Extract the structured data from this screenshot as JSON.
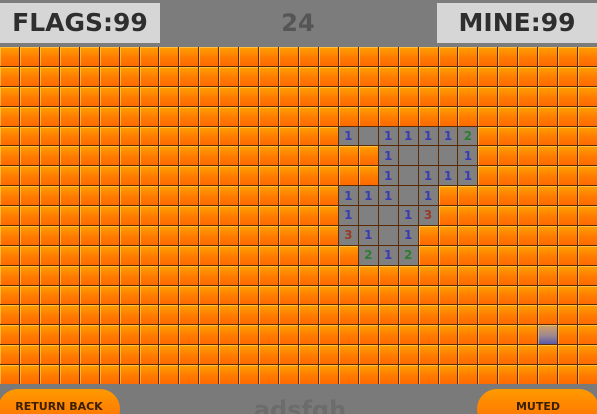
{
  "hud": {
    "flags_label": "FLAGS:99",
    "timer": "24",
    "mine_label": "MINE:99"
  },
  "board": {
    "columns": 30,
    "rows": 17,
    "opened": [
      {
        "r": 4,
        "c": 17,
        "n": "1"
      },
      {
        "r": 4,
        "c": 18,
        "n": ""
      },
      {
        "r": 4,
        "c": 19,
        "n": "1"
      },
      {
        "r": 4,
        "c": 20,
        "n": "1"
      },
      {
        "r": 4,
        "c": 21,
        "n": "1"
      },
      {
        "r": 4,
        "c": 22,
        "n": "1"
      },
      {
        "r": 4,
        "c": 23,
        "n": "2"
      },
      {
        "r": 5,
        "c": 19,
        "n": "1"
      },
      {
        "r": 5,
        "c": 20,
        "n": ""
      },
      {
        "r": 5,
        "c": 21,
        "n": ""
      },
      {
        "r": 5,
        "c": 22,
        "n": ""
      },
      {
        "r": 5,
        "c": 23,
        "n": "1"
      },
      {
        "r": 6,
        "c": 19,
        "n": "1"
      },
      {
        "r": 6,
        "c": 20,
        "n": ""
      },
      {
        "r": 6,
        "c": 21,
        "n": "1"
      },
      {
        "r": 6,
        "c": 22,
        "n": "1"
      },
      {
        "r": 6,
        "c": 23,
        "n": "1"
      },
      {
        "r": 7,
        "c": 17,
        "n": "1"
      },
      {
        "r": 7,
        "c": 18,
        "n": "1"
      },
      {
        "r": 7,
        "c": 19,
        "n": "1"
      },
      {
        "r": 7,
        "c": 20,
        "n": ""
      },
      {
        "r": 7,
        "c": 21,
        "n": "1"
      },
      {
        "r": 8,
        "c": 17,
        "n": "1"
      },
      {
        "r": 8,
        "c": 18,
        "n": ""
      },
      {
        "r": 8,
        "c": 19,
        "n": ""
      },
      {
        "r": 8,
        "c": 20,
        "n": "1"
      },
      {
        "r": 8,
        "c": 21,
        "n": "3"
      },
      {
        "r": 9,
        "c": 17,
        "n": "3"
      },
      {
        "r": 9,
        "c": 18,
        "n": "1"
      },
      {
        "r": 9,
        "c": 19,
        "n": ""
      },
      {
        "r": 9,
        "c": 20,
        "n": "1"
      },
      {
        "r": 10,
        "c": 18,
        "n": "2"
      },
      {
        "r": 10,
        "c": 19,
        "n": "1"
      },
      {
        "r": 10,
        "c": 20,
        "n": "2"
      }
    ],
    "cursor": {
      "r": 14,
      "c": 27
    }
  },
  "footer": {
    "return_label": "RETURN BACK",
    "player_name": "adsfgh",
    "muted_label": "MUTED"
  }
}
